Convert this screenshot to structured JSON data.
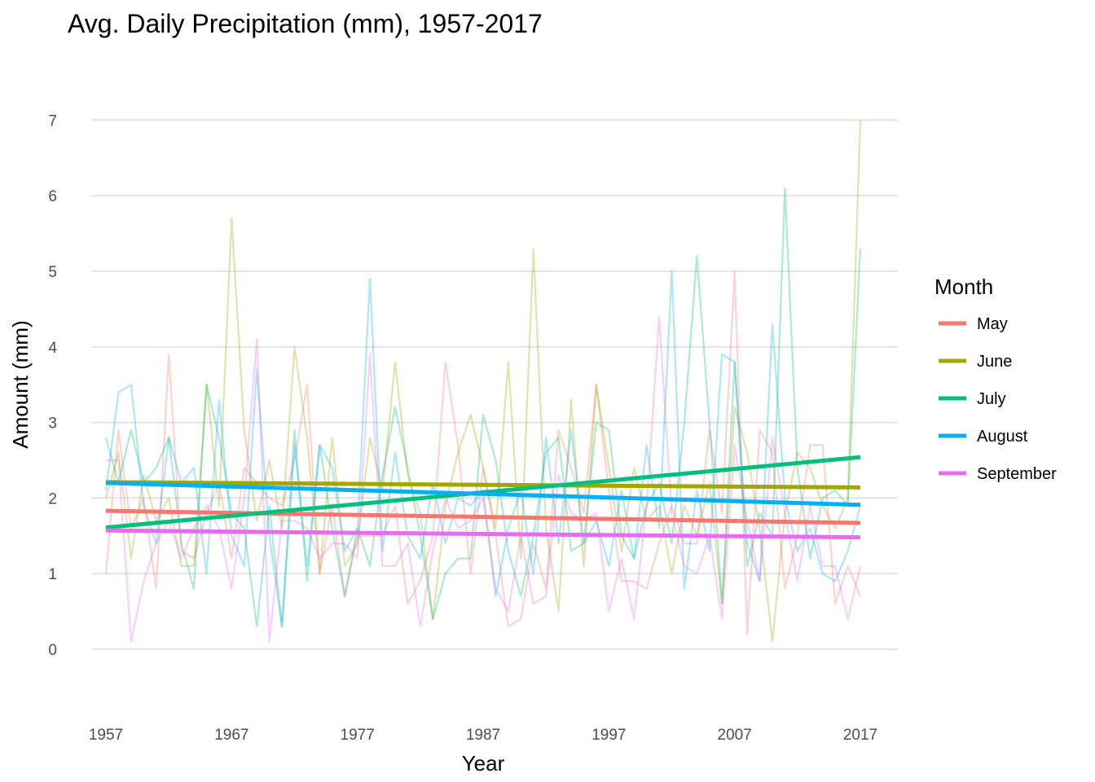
{
  "chart_data": {
    "type": "line",
    "title": "Avg. Daily Precipitation (mm), 1957-2017",
    "xlabel": "Year",
    "ylabel": "Amount (mm)",
    "xlim": [
      1957,
      2017
    ],
    "ylim": [
      -0.6,
      7.3
    ],
    "x_ticks": [
      1957,
      1967,
      1977,
      1987,
      1997,
      2007,
      2017
    ],
    "y_ticks": [
      0,
      1,
      2,
      3,
      4,
      5,
      6,
      7
    ],
    "grid": "horizontal",
    "legend": {
      "title": "Month",
      "position": "right"
    },
    "x": [
      1957,
      1958,
      1959,
      1960,
      1961,
      1962,
      1963,
      1964,
      1965,
      1966,
      1967,
      1968,
      1969,
      1970,
      1971,
      1972,
      1973,
      1974,
      1975,
      1976,
      1977,
      1978,
      1979,
      1980,
      1981,
      1982,
      1983,
      1984,
      1985,
      1986,
      1987,
      1988,
      1989,
      1990,
      1991,
      1992,
      1993,
      1994,
      1995,
      1996,
      1997,
      1998,
      1999,
      2000,
      2001,
      2002,
      2003,
      2004,
      2005,
      2006,
      2007,
      2008,
      2009,
      2010,
      2011,
      2012,
      2013,
      2014,
      2015,
      2016,
      2017
    ],
    "series": [
      {
        "name": "May",
        "color": "#F8766D",
        "values": [
          1.0,
          2.9,
          1.6,
          2.0,
          0.8,
          3.9,
          1.3,
          1.2,
          1.8,
          2.2,
          1.2,
          2.4,
          2.2,
          2.0,
          1.9,
          2.5,
          3.5,
          1.0,
          1.9,
          0.7,
          1.5,
          1.5,
          1.5,
          1.9,
          0.6,
          0.9,
          1.5,
          3.8,
          2.7,
          1.0,
          2.4,
          1.5,
          0.3,
          0.4,
          1.4,
          0.8,
          2.9,
          2.4,
          1.8,
          3.5,
          2.1,
          0.9,
          0.9,
          0.8,
          1.4,
          1.9,
          1.4,
          1.4,
          2.9,
          1.8,
          5.0,
          0.2,
          2.9,
          2.6,
          0.8,
          1.5,
          2.7,
          2.7,
          0.6,
          1.1,
          0.7
        ],
        "trend": [
          1.83,
          1.67
        ]
      },
      {
        "name": "June",
        "color": "#A3A500",
        "values": [
          2.0,
          2.6,
          1.2,
          2.3,
          1.7,
          2.0,
          1.1,
          1.1,
          3.5,
          1.9,
          5.7,
          2.9,
          1.7,
          2.5,
          1.6,
          4.0,
          2.8,
          1.0,
          2.8,
          1.1,
          1.4,
          2.8,
          2.1,
          3.8,
          2.3,
          1.8,
          0.4,
          1.9,
          2.6,
          3.1,
          2.4,
          1.6,
          3.8,
          1.2,
          5.3,
          1.6,
          0.5,
          3.3,
          1.1,
          3.5,
          2.4,
          1.3,
          2.4,
          1.7,
          1.9,
          1.0,
          1.9,
          1.5,
          2.2,
          0.6,
          3.2,
          2.6,
          1.6,
          0.1,
          1.8,
          2.6,
          2.4,
          1.9,
          1.6,
          2.0,
          7.0
        ],
        "trend": [
          2.21,
          2.14
        ]
      },
      {
        "name": "July",
        "color": "#00BF7D",
        "values": [
          2.8,
          2.2,
          2.9,
          2.2,
          2.4,
          2.8,
          1.4,
          0.8,
          3.5,
          2.8,
          1.8,
          1.6,
          0.3,
          1.9,
          0.3,
          2.9,
          0.9,
          2.7,
          1.6,
          0.7,
          1.6,
          1.1,
          2.3,
          3.2,
          2.4,
          1.5,
          0.4,
          1.0,
          1.2,
          1.2,
          3.1,
          2.5,
          1.3,
          0.7,
          1.5,
          2.6,
          2.8,
          1.3,
          1.4,
          3.0,
          2.9,
          1.5,
          1.2,
          1.9,
          2.2,
          1.4,
          3.0,
          5.2,
          3.0,
          0.6,
          3.8,
          1.1,
          1.8,
          1.5,
          6.1,
          2.4,
          1.2,
          2.0,
          2.1,
          1.9,
          5.3
        ],
        "trend": [
          1.61,
          2.54
        ]
      },
      {
        "name": "August",
        "color": "#00B0F6",
        "values": [
          2.1,
          3.4,
          3.5,
          1.9,
          1.4,
          2.8,
          2.2,
          2.4,
          1.0,
          3.3,
          1.5,
          1.1,
          3.7,
          1.5,
          0.3,
          2.7,
          1.1,
          2.7,
          2.4,
          1.3,
          1.6,
          4.9,
          1.3,
          2.6,
          1.5,
          1.2,
          2.2,
          1.4,
          2.0,
          1.9,
          2.1,
          0.7,
          1.6,
          2.1,
          1.0,
          2.8,
          1.4,
          2.9,
          1.4,
          1.7,
          1.1,
          2.1,
          1.2,
          2.7,
          1.6,
          5.0,
          0.8,
          2.1,
          1.3,
          3.9,
          3.8,
          1.4,
          0.9,
          4.3,
          2.0,
          1.3,
          1.6,
          1.0,
          0.9,
          1.3,
          1.9
        ],
        "trend": [
          2.2,
          1.91
        ]
      },
      {
        "name": "September",
        "color": "#E76BF3",
        "values": [
          2.5,
          2.5,
          0.1,
          0.9,
          1.4,
          1.7,
          1.2,
          1.6,
          1.9,
          1.6,
          0.8,
          2.0,
          4.1,
          0.1,
          1.7,
          1.7,
          1.6,
          1.2,
          1.4,
          1.4,
          1.2,
          3.9,
          1.1,
          1.1,
          1.4,
          0.3,
          1.3,
          2.0,
          1.6,
          1.7,
          2.0,
          0.8,
          0.5,
          1.5,
          0.6,
          0.7,
          2.3,
          1.8,
          1.7,
          1.8,
          0.5,
          1.2,
          0.4,
          1.9,
          4.4,
          1.8,
          1.1,
          1.0,
          1.5,
          0.4,
          2.7,
          1.7,
          0.9,
          2.8,
          1.8,
          0.9,
          1.9,
          1.1,
          1.1,
          0.4,
          1.1
        ],
        "trend": [
          1.57,
          1.48
        ]
      }
    ]
  }
}
